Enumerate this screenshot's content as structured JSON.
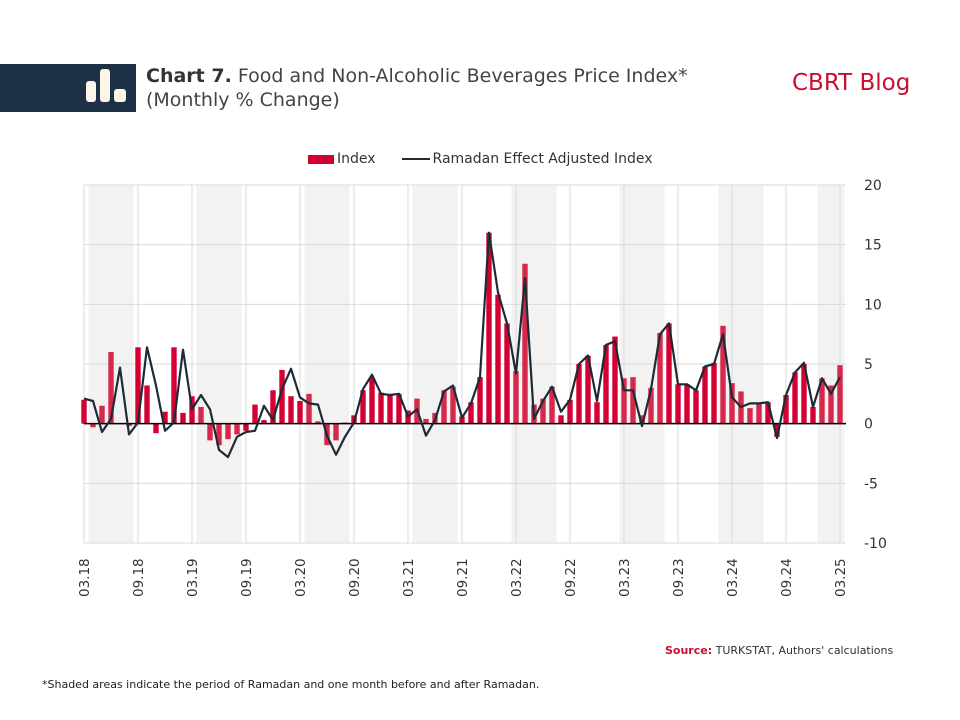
{
  "header": {
    "chart_label": "Chart 7.",
    "title_line1": "Food and Non-Alcoholic  Beverages Price Index*",
    "title_line2": "(Monthly % Change)",
    "brand": "CBRT Blog",
    "logo_icon": "bar-chart-icon"
  },
  "colors": {
    "banner": "#1d3046",
    "index_bar": "#d50032",
    "index_bar_ramadan": "#d6284a",
    "adjusted_line": "#1d2b36",
    "brand": "#c8102e",
    "shade": "#f2f2f2",
    "grid": "#d9d9d9"
  },
  "footer": {
    "source_label": "Source:",
    "source_text": "TURKSTAT, Authors' calculations",
    "note": "*Shaded areas indicate the period of Ramadan and one month before and after Ramadan."
  },
  "chart_data": {
    "type": "bar+line",
    "title": "Food and Non-Alcoholic Beverages Price Index* (Monthly % Change)",
    "xlabel": "",
    "ylabel": "",
    "ylim": [
      -10,
      20
    ],
    "yticks": [
      20,
      15,
      10,
      5,
      0,
      -5,
      -10
    ],
    "y_axis_position": "right",
    "grid": true,
    "legend": {
      "placement": "top-center",
      "entries": [
        "Index",
        "Ramadan Effect Adjusted Index"
      ]
    },
    "x_start": "03.18",
    "xtick_labels": [
      "03.18",
      "09.18",
      "03.19",
      "09.19",
      "03.20",
      "09.20",
      "03.21",
      "09.21",
      "03.22",
      "09.22",
      "03.23",
      "09.23",
      "03.24",
      "09.24",
      "03.25"
    ],
    "shaded_periods_month_index": [
      [
        1,
        5
      ],
      [
        13,
        17
      ],
      [
        25,
        29
      ],
      [
        37,
        41
      ],
      [
        48,
        52
      ],
      [
        60,
        64
      ],
      [
        71,
        75
      ],
      [
        82,
        84
      ]
    ],
    "series": [
      {
        "name": "Index",
        "kind": "bar",
        "values": [
          2.0,
          -0.3,
          1.5,
          6.0,
          0.0,
          -0.2,
          6.4,
          3.2,
          -0.8,
          1.0,
          6.4,
          0.9,
          2.3,
          1.4,
          -1.4,
          -1.8,
          -1.3,
          -0.9,
          -0.6,
          1.6,
          0.3,
          2.8,
          4.5,
          2.3,
          1.9,
          2.5,
          0.2,
          -1.8,
          -1.4,
          0.1,
          0.7,
          2.8,
          3.9,
          2.6,
          2.5,
          2.5,
          1.1,
          2.1,
          0.4,
          0.9,
          2.8,
          3.1,
          0.6,
          1.8,
          3.9,
          16.0,
          10.8,
          8.4,
          4.4,
          13.4,
          1.6,
          2.1,
          3.1,
          0.7,
          2.0,
          5.0,
          5.7,
          1.8,
          6.6,
          7.3,
          3.8,
          3.9,
          0.7,
          3.0,
          7.6,
          8.4,
          3.3,
          3.3,
          2.8,
          4.8,
          5.1,
          8.2,
          3.4,
          2.7,
          1.3,
          1.7,
          1.8,
          -1.1,
          2.4,
          4.3,
          5.0,
          1.4,
          3.8,
          3.2,
          4.9
        ]
      },
      {
        "name": "Ramadan Effect Adjusted Index",
        "kind": "line",
        "values": [
          2.1,
          1.9,
          -0.7,
          0.4,
          4.7,
          -0.9,
          0.1,
          6.4,
          3.2,
          -0.6,
          0.1,
          6.2,
          1.2,
          2.4,
          1.2,
          -2.2,
          -2.8,
          -1.1,
          -0.7,
          -0.6,
          1.5,
          0.3,
          2.9,
          4.6,
          2.2,
          1.7,
          1.6,
          -1.0,
          -2.6,
          -1.1,
          0.1,
          2.9,
          4.1,
          2.5,
          2.4,
          2.5,
          0.6,
          1.2,
          -1.0,
          0.3,
          2.7,
          3.2,
          0.5,
          1.7,
          3.9,
          16.0,
          11.0,
          8.4,
          4.2,
          12.2,
          0.4,
          1.9,
          3.1,
          1.0,
          2.0,
          5.0,
          5.7,
          1.9,
          6.6,
          6.9,
          2.8,
          2.8,
          -0.2,
          2.9,
          7.5,
          8.4,
          3.3,
          3.3,
          2.8,
          4.8,
          5.0,
          7.5,
          2.2,
          1.4,
          1.7,
          1.7,
          1.8,
          -1.2,
          2.4,
          4.3,
          5.1,
          1.4,
          3.8,
          2.5,
          3.9
        ]
      }
    ]
  }
}
